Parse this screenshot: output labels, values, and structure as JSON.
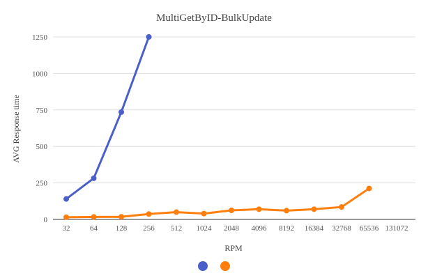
{
  "chart_data": {
    "type": "line",
    "title": "MultiGetByID-BulkUpdate",
    "xlabel": "RPM",
    "ylabel": "AVG Response time",
    "categories": [
      "32",
      "64",
      "128",
      "256",
      "512",
      "1024",
      "2048",
      "4096",
      "8192",
      "16384",
      "32768",
      "65536",
      "131072"
    ],
    "ylim": [
      0,
      1250
    ],
    "yticks": [
      "0",
      "250",
      "500",
      "750",
      "1000",
      "1250"
    ],
    "grid": true,
    "legend_position": "bottom",
    "series": [
      {
        "color": "#4a5fc8",
        "values": [
          140,
          282,
          735,
          1250,
          null,
          null,
          null,
          null,
          null,
          null,
          null,
          null,
          null
        ]
      },
      {
        "color": "#ff7f0e",
        "values": [
          15,
          17,
          18,
          37,
          50,
          40,
          62,
          70,
          60,
          70,
          85,
          212,
          null
        ]
      }
    ]
  }
}
